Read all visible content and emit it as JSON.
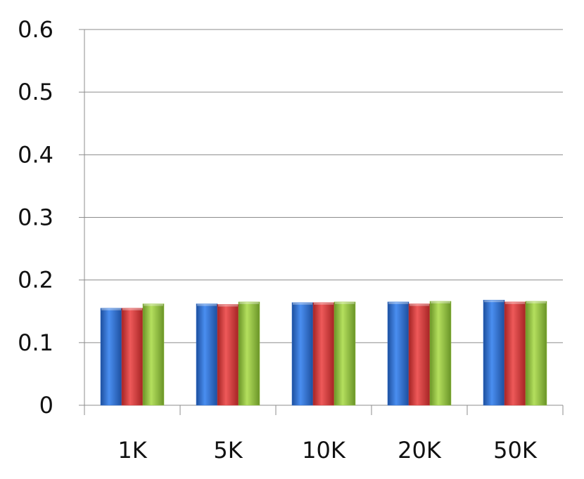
{
  "chart_data": {
    "type": "bar",
    "categories": [
      "1K",
      "5K",
      "10K",
      "20K",
      "50K"
    ],
    "series": [
      {
        "color": "#2e6fd0",
        "values": [
          0.155,
          0.162,
          0.164,
          0.165,
          0.168
        ]
      },
      {
        "color": "#d63a3a",
        "values": [
          0.155,
          0.161,
          0.164,
          0.162,
          0.165
        ]
      },
      {
        "color": "#92c23c",
        "values": [
          0.162,
          0.165,
          0.165,
          0.166,
          0.166
        ]
      }
    ],
    "y_ticks": [
      "0",
      "0.1",
      "0.2",
      "0.3",
      "0.4",
      "0.5",
      "0.6"
    ],
    "ylim": [
      0,
      0.6
    ],
    "grid": true,
    "legend": "none"
  }
}
